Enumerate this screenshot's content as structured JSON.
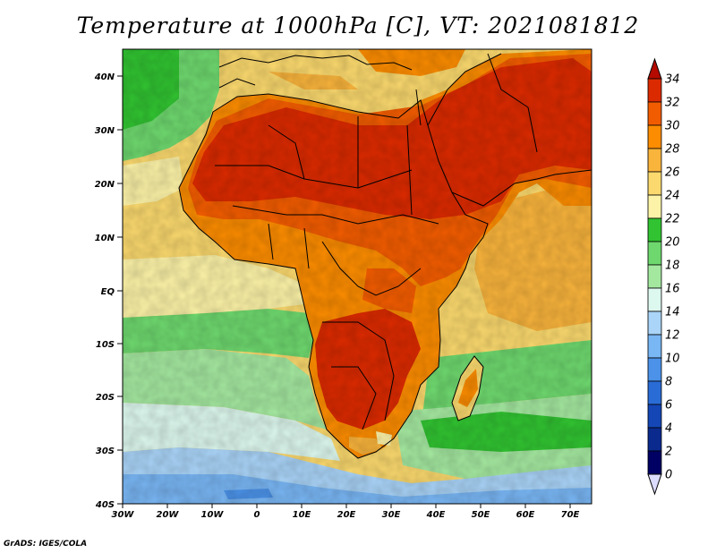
{
  "title": "Temperature at 1000hPa [C], VT: 2021081812",
  "credit": "GrADS: IGES/COLA",
  "map": {
    "lat_labels": [
      "40N",
      "30N",
      "20N",
      "10N",
      "EQ",
      "10S",
      "20S",
      "30S",
      "40S"
    ],
    "lon_labels": [
      "30W",
      "20W",
      "10W",
      "0",
      "10E",
      "20E",
      "30E",
      "40E",
      "50E",
      "60E",
      "70E"
    ],
    "lat_range": [
      -40,
      45
    ],
    "lon_range": [
      -30,
      75
    ]
  },
  "colorbar": {
    "levels": [
      "34",
      "32",
      "30",
      "28",
      "26",
      "24",
      "22",
      "20",
      "18",
      "16",
      "14",
      "12",
      "10",
      "8",
      "6",
      "4",
      "2",
      "0"
    ],
    "colors": [
      "#b40a00",
      "#db2a00",
      "#f25c00",
      "#fc8c00",
      "#f9b43c",
      "#fbd96e",
      "#fdf3a8",
      "#31c331",
      "#6ed86e",
      "#a4e8a0",
      "#ddf8ee",
      "#aad4f8",
      "#79b6f4",
      "#4b92e8",
      "#2a6cd6",
      "#1446b6",
      "#0a2a8e",
      "#000064",
      "#dcdcff"
    ]
  }
}
